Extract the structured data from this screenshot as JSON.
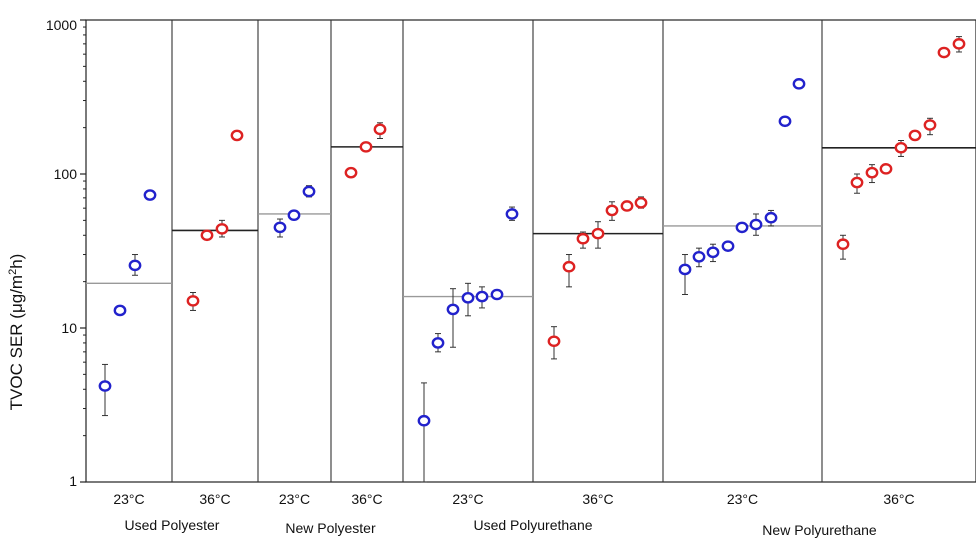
{
  "chart_data": {
    "type": "scatter",
    "title": "",
    "ylabel_main": "TVOC SER (μg/m",
    "ylabel_sup": "2",
    "ylabel_tail": "h)",
    "yscale": "log",
    "ylim": [
      1,
      1000
    ],
    "yticks": [
      {
        "value": 1,
        "label": "1"
      },
      {
        "value": 10,
        "label": "10"
      },
      {
        "value": 100,
        "label": "100"
      },
      {
        "value": 1000,
        "label": "1000"
      }
    ],
    "series_colors": {
      "blue": "#2222cc",
      "red": "#dd2222"
    },
    "mean_line_colors": {
      "dark": "#222222",
      "light": "#999999"
    },
    "groups": [
      {
        "label": "Used Polyester",
        "panels": [
          0,
          1
        ]
      },
      {
        "label": "New Polyester",
        "panels": [
          2,
          3
        ]
      },
      {
        "label": "Used Polyurethane",
        "panels": [
          4,
          5
        ]
      },
      {
        "label": "New Polyurethane",
        "panels": [
          6,
          7
        ]
      }
    ],
    "panels": [
      {
        "label": "23°C",
        "mean": 19.5,
        "mean_style": "light",
        "points": [
          {
            "value": 4.2,
            "err_low": 2.7,
            "err_high": 5.8,
            "color": "blue"
          },
          {
            "value": 13,
            "color": "blue"
          },
          {
            "value": 25.5,
            "err_low": 22,
            "err_high": 30,
            "color": "blue"
          },
          {
            "value": 73,
            "color": "blue"
          }
        ]
      },
      {
        "label": "36°C",
        "mean": 43,
        "mean_style": "dark",
        "points": [
          {
            "value": 15,
            "err_low": 13,
            "err_high": 17,
            "color": "red"
          },
          {
            "value": 40,
            "color": "red"
          },
          {
            "value": 44,
            "err_low": 39,
            "err_high": 50,
            "color": "red"
          },
          {
            "value": 178,
            "color": "red"
          }
        ]
      },
      {
        "label": "23°C",
        "mean": 55,
        "mean_style": "light",
        "points": [
          {
            "value": 45,
            "err_low": 39,
            "err_high": 51,
            "color": "blue"
          },
          {
            "value": 54,
            "color": "blue"
          },
          {
            "value": 77,
            "err_low": 71,
            "err_high": 84,
            "color": "blue"
          }
        ]
      },
      {
        "label": "36°C",
        "mean": 150,
        "mean_style": "dark",
        "points": [
          {
            "value": 102,
            "color": "red"
          },
          {
            "value": 150,
            "color": "red"
          },
          {
            "value": 195,
            "err_low": 170,
            "err_high": 215,
            "color": "red"
          }
        ]
      },
      {
        "label": "23°C",
        "mean": 16,
        "mean_style": "light",
        "points": [
          {
            "value": 2.5,
            "err_low": 1,
            "err_high": 4.4,
            "color": "blue"
          },
          {
            "value": 8,
            "err_low": 7,
            "err_high": 9.2,
            "color": "blue"
          },
          {
            "value": 13.2,
            "err_low": 7.5,
            "err_high": 18,
            "color": "blue"
          },
          {
            "value": 15.7,
            "err_low": 12,
            "err_high": 19.5,
            "color": "blue"
          },
          {
            "value": 16,
            "err_low": 13.5,
            "err_high": 18.5,
            "color": "blue"
          },
          {
            "value": 16.5,
            "color": "blue"
          },
          {
            "value": 55,
            "err_low": 50,
            "err_high": 61,
            "color": "blue"
          }
        ]
      },
      {
        "label": "36°C",
        "mean": 41,
        "mean_style": "dark",
        "points": [
          {
            "value": 8.2,
            "err_low": 6.3,
            "err_high": 10.2,
            "color": "red"
          },
          {
            "value": 25,
            "err_low": 18.5,
            "err_high": 30,
            "color": "red"
          },
          {
            "value": 38,
            "err_low": 33,
            "err_high": 42,
            "color": "red"
          },
          {
            "value": 41,
            "err_low": 33,
            "err_high": 49,
            "color": "red"
          },
          {
            "value": 58,
            "err_low": 50,
            "err_high": 66,
            "color": "red"
          },
          {
            "value": 62,
            "color": "red"
          },
          {
            "value": 65,
            "err_low": 60,
            "err_high": 71,
            "color": "red"
          }
        ]
      },
      {
        "label": "23°C",
        "mean": 46,
        "mean_style": "light",
        "points": [
          {
            "value": 24,
            "err_low": 16.5,
            "err_high": 30,
            "color": "blue"
          },
          {
            "value": 29,
            "err_low": 25,
            "err_high": 33,
            "color": "blue"
          },
          {
            "value": 31,
            "err_low": 27,
            "err_high": 35,
            "color": "blue"
          },
          {
            "value": 34,
            "color": "blue"
          },
          {
            "value": 45,
            "color": "blue"
          },
          {
            "value": 47,
            "err_low": 40,
            "err_high": 55,
            "color": "blue"
          },
          {
            "value": 52,
            "err_low": 46,
            "err_high": 58,
            "color": "blue"
          },
          {
            "value": 220,
            "err_low": 205,
            "err_high": 235,
            "color": "blue"
          },
          {
            "value": 385,
            "err_low": 360,
            "err_high": 405,
            "color": "blue"
          }
        ]
      },
      {
        "label": "36°C",
        "mean": 148,
        "mean_style": "dark",
        "points": [
          {
            "value": 35,
            "err_low": 28,
            "err_high": 40,
            "color": "red"
          },
          {
            "value": 88,
            "err_low": 75,
            "err_high": 100,
            "color": "red"
          },
          {
            "value": 102,
            "err_low": 88,
            "err_high": 115,
            "color": "red"
          },
          {
            "value": 108,
            "color": "red"
          },
          {
            "value": 148,
            "err_low": 130,
            "err_high": 165,
            "color": "red"
          },
          {
            "value": 178,
            "color": "red"
          },
          {
            "value": 208,
            "err_low": 180,
            "err_high": 230,
            "color": "red"
          },
          {
            "value": 615,
            "color": "red"
          },
          {
            "value": 700,
            "err_low": 620,
            "err_high": 780,
            "color": "red"
          }
        ]
      }
    ]
  }
}
